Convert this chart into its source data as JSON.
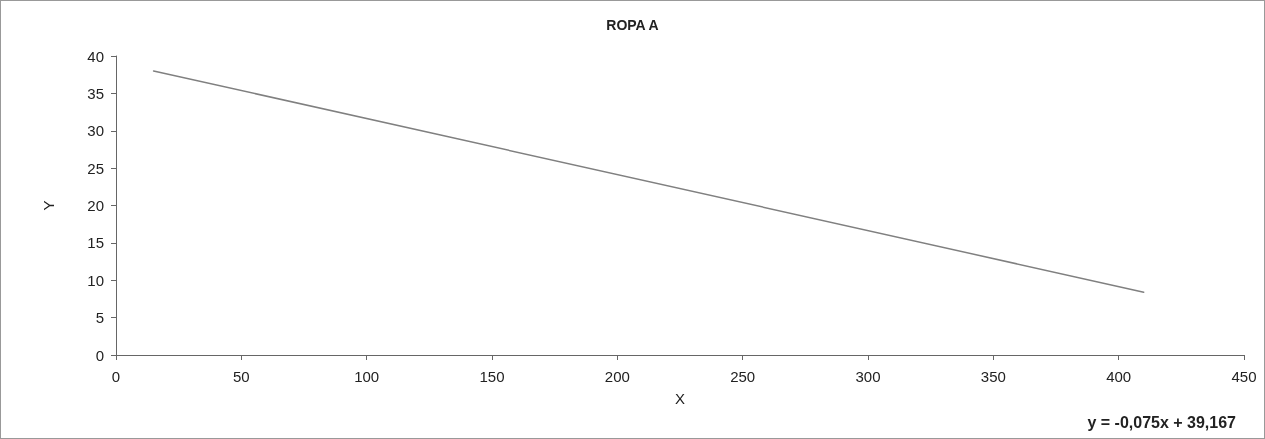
{
  "chart_data": {
    "type": "line",
    "title": "ROPA A",
    "xlabel": "X",
    "ylabel": "Y",
    "series": [
      {
        "color": "#808080",
        "x": [
          15,
          410
        ],
        "values": [
          38,
          8.4
        ]
      }
    ],
    "xlim": [
      0,
      450
    ],
    "xticks": [
      0,
      50,
      100,
      150,
      200,
      250,
      300,
      350,
      400,
      450
    ],
    "ylim": [
      0,
      40
    ],
    "yticks": [
      0,
      5,
      10,
      15,
      20,
      25,
      30,
      35,
      40
    ],
    "grid": false,
    "marker": "none",
    "line_style": "solid",
    "annotations": [
      "y = -0,075x + 39,167"
    ]
  }
}
